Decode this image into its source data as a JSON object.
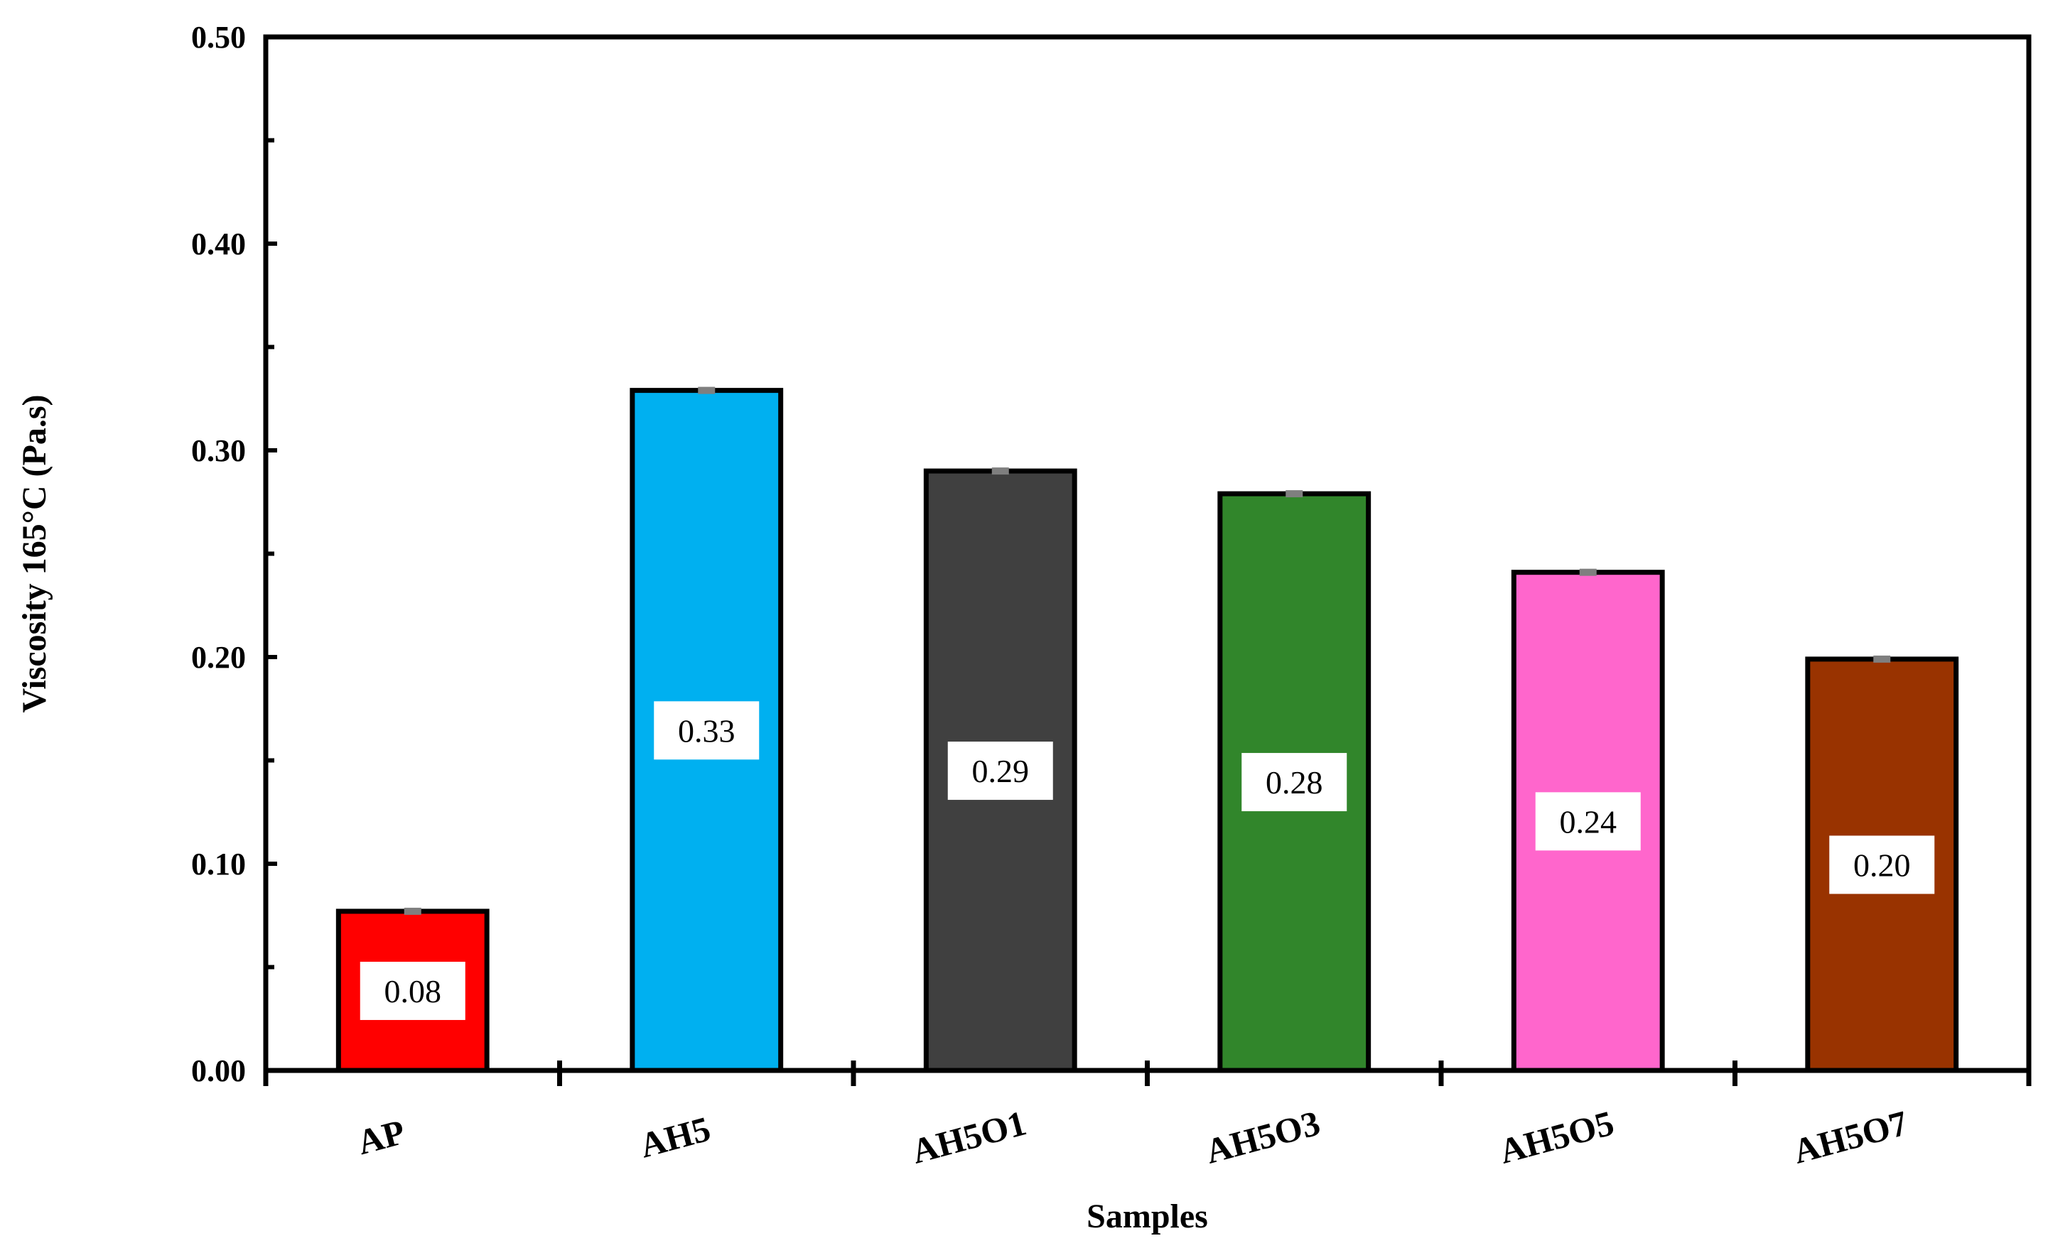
{
  "chart_data": {
    "type": "bar",
    "title": "",
    "xlabel": "Samples",
    "ylabel": "Viscosity 165°C (Pa.s)",
    "ylim": [
      0,
      0.5
    ],
    "yticks": [
      "0.00",
      "0.10",
      "0.20",
      "0.30",
      "0.40",
      "0.50"
    ],
    "categories": [
      "AP",
      "AH5",
      "AH5O1",
      "AH5O3",
      "AH5O5",
      "AH5O7"
    ],
    "values": [
      0.077,
      0.329,
      0.29,
      0.279,
      0.241,
      0.199
    ],
    "data_labels": [
      "0.08",
      "0.33",
      "0.29",
      "0.28",
      "0.24",
      "0.20"
    ],
    "colors": [
      "#ff0000",
      "#00b0f0",
      "#404040",
      "#31862b",
      "#ff66cc",
      "#993300"
    ],
    "grid": false,
    "legend": "none",
    "error_bars": true
  }
}
